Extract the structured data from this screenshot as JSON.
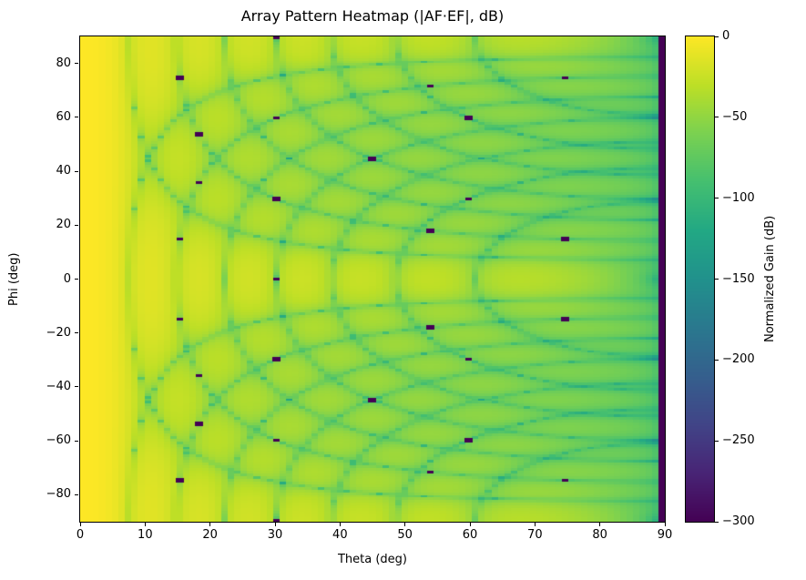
{
  "figure": {
    "title": "Array Pattern Heatmap (|AF·EF|, dB)",
    "xlabel": "Theta (deg)",
    "ylabel": "Phi (deg)",
    "colorbar_label": "Normalized Gain (dB)",
    "background": "#ffffff"
  },
  "chart_data": {
    "type": "heatmap",
    "title": "Array Pattern Heatmap (|AF·EF|, dB)",
    "xlabel": "Theta (deg)",
    "ylabel": "Phi (deg)",
    "colorbar_label": "Normalized Gain (dB)",
    "x_range": [
      0,
      90
    ],
    "y_range": [
      -90,
      90
    ],
    "x_step_deg": 1,
    "y_step_deg": 1,
    "value_range_db": [
      -300,
      0
    ],
    "xticks": [
      0,
      10,
      20,
      30,
      40,
      50,
      60,
      70,
      80,
      90
    ],
    "yticks": [
      -80,
      -60,
      -40,
      -20,
      0,
      20,
      40,
      60,
      80
    ],
    "colorbar_ticks": [
      0,
      -50,
      -100,
      -150,
      -200,
      -250,
      -300
    ],
    "grid": false,
    "legend": "colorbar-right",
    "colormap": "viridis",
    "colormap_stops": [
      [
        0.0,
        "#440154"
      ],
      [
        0.1,
        "#482475"
      ],
      [
        0.2,
        "#414487"
      ],
      [
        0.3,
        "#355f8d"
      ],
      [
        0.4,
        "#2a788e"
      ],
      [
        0.5,
        "#21918c"
      ],
      [
        0.6,
        "#22a884"
      ],
      [
        0.7,
        "#44bf70"
      ],
      [
        0.8,
        "#7ad151"
      ],
      [
        0.9,
        "#bddf26"
      ],
      [
        1.0,
        "#fde725"
      ]
    ],
    "generator": {
      "description": "Normalized gain (dB) of a uniform planar phased array with cosine element factor: value = 20*log10(|AFx(u)*AFy(v)*cos(theta)|), where u = sin(theta)*cos(phi), v = sin(theta)*sin(phi), AF(N,d,w) = sin(N*pi*d*w)/(N*sin(pi*d*w)); evaluated on a 1-degree grid and clipped at -300 dB",
      "nx": 16,
      "ny": 16,
      "spacing_wavelengths": 0.5,
      "clip_db": -300
    },
    "deep_null_points": [
      [
        15,
        75
      ],
      [
        18,
        54
      ],
      [
        30,
        30
      ],
      [
        45,
        45
      ],
      [
        54,
        18
      ],
      [
        60,
        60
      ],
      [
        75,
        15
      ],
      [
        15,
        -75
      ],
      [
        18,
        -54
      ],
      [
        30,
        -30
      ],
      [
        45,
        -45
      ],
      [
        54,
        -18
      ],
      [
        60,
        -60
      ],
      [
        75,
        -15
      ]
    ]
  }
}
